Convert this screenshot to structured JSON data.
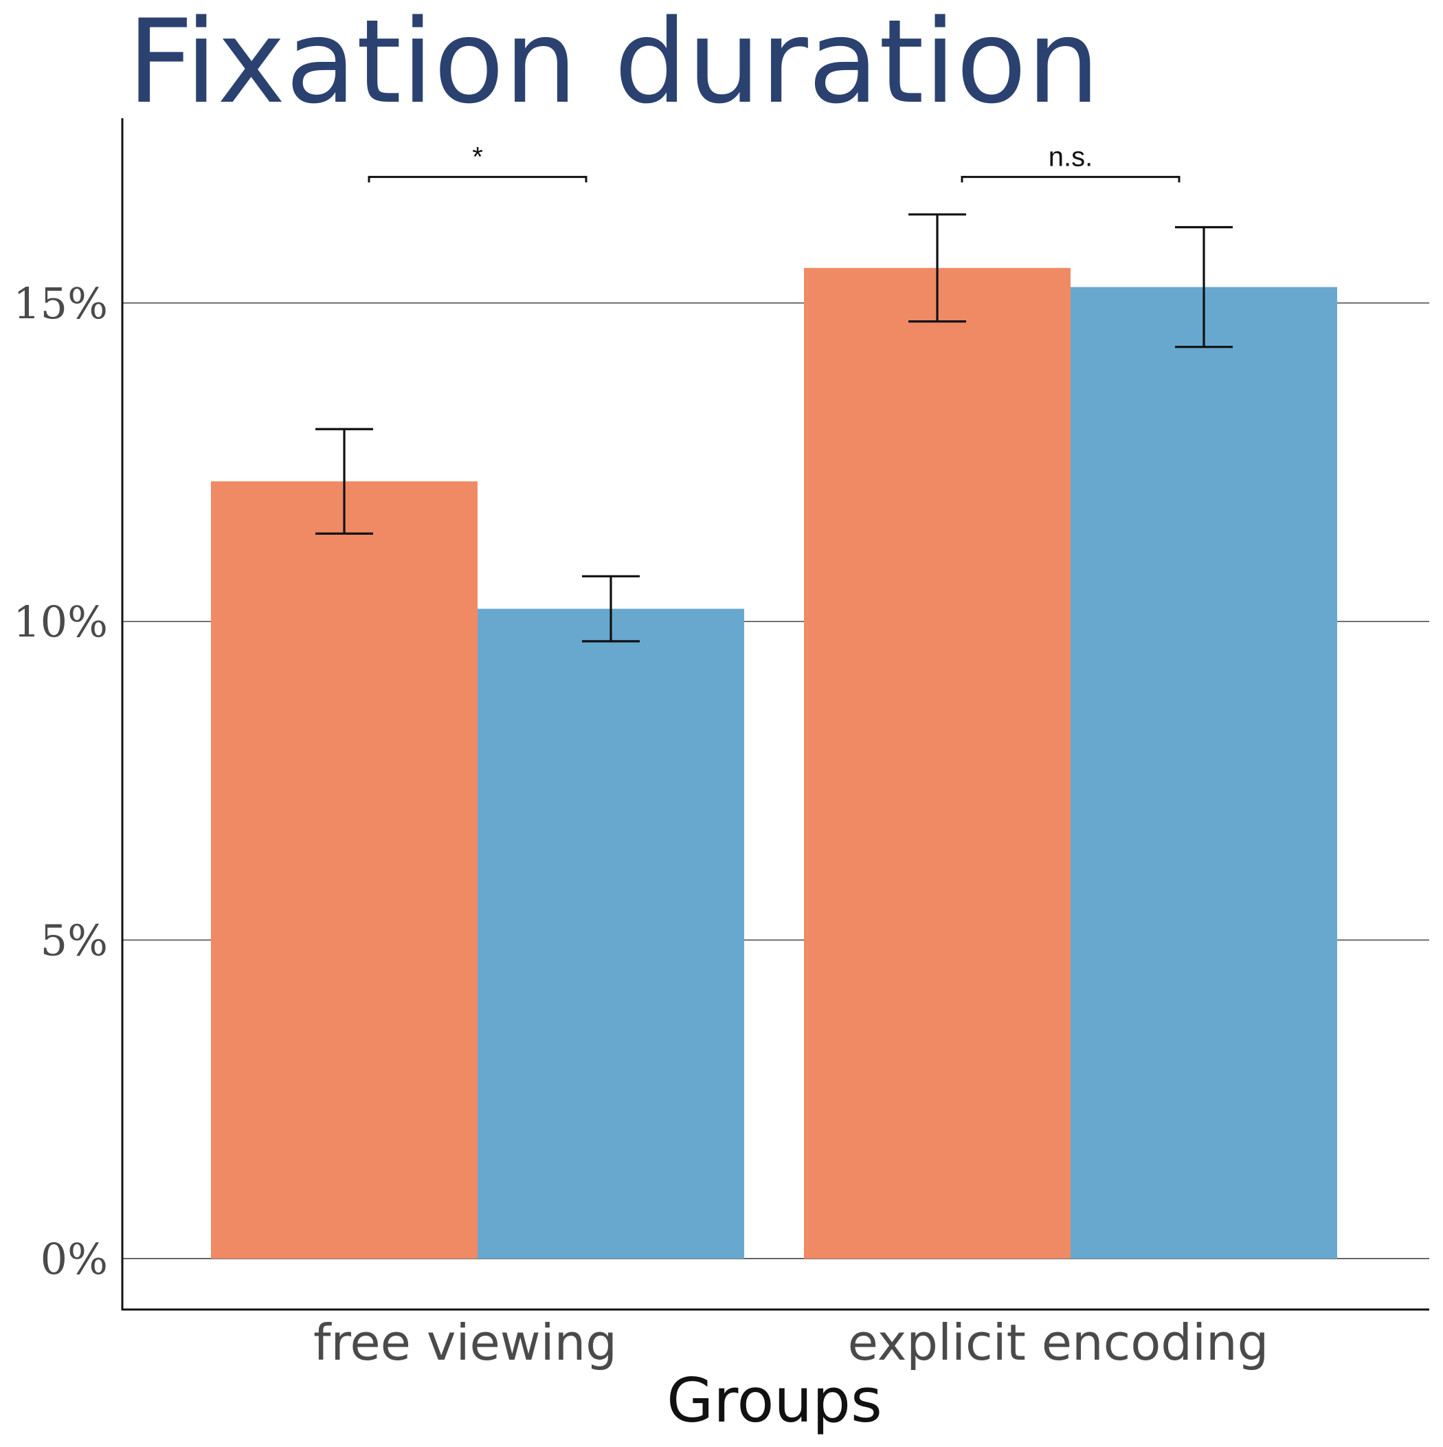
{
  "colors": {
    "title": "#2b4170",
    "orange": "#ef8a64",
    "blue": "#68a8ce",
    "grid": "#444444",
    "axis": "#111111"
  },
  "chart_data": {
    "type": "bar",
    "title": "Fixation duration",
    "xlabel": "Groups",
    "ylabel": "",
    "categories": [
      "free viewing",
      "explicit encoding"
    ],
    "series": [
      {
        "color": "#ef8a64",
        "values": [
          12.2,
          15.55
        ],
        "error": [
          0.82,
          0.84
        ]
      },
      {
        "color": "#68a8ce",
        "values": [
          10.2,
          15.25
        ],
        "error": [
          0.51,
          0.94
        ]
      }
    ],
    "ylim": [
      -0.8,
      17.9
    ],
    "yticks": [
      0,
      5,
      10,
      15
    ],
    "ytick_labels": [
      "0%",
      "5%",
      "10%",
      "15%"
    ],
    "grid": true,
    "legend": "none",
    "annotations": [
      {
        "category": "free viewing",
        "label": "*",
        "y": 17.0
      },
      {
        "category": "explicit encoding",
        "label": "n.s.",
        "y": 17.0
      }
    ]
  }
}
